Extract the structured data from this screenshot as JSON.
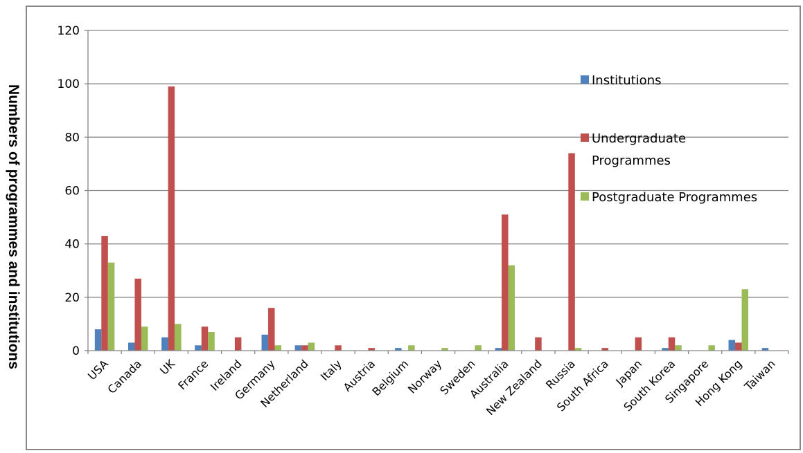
{
  "chart_data": {
    "type": "bar",
    "title": "",
    "xlabel": "",
    "ylabel": "Numbers of programmes and institutions",
    "ylim": [
      0,
      120
    ],
    "yticks": [
      "0",
      "20",
      "40",
      "60",
      "80",
      "100",
      "120"
    ],
    "grid": true,
    "legend_position": "right",
    "categories": [
      "USA",
      "Canada",
      "UK",
      "France",
      "Ireland",
      "Germany",
      "Netherland",
      "Italy",
      "Austria",
      "Belgium",
      "Norway",
      "Sweden",
      "Australia",
      "New Zealand",
      "Russia",
      "South Africa",
      "Japan",
      "South Korea",
      "Singapore",
      "Hong Kong",
      "Taiwan"
    ],
    "series": [
      {
        "name": "Institutions",
        "color": "#4f81bd",
        "values": [
          8,
          3,
          5,
          2,
          0,
          6,
          2,
          0,
          0,
          1,
          0,
          0,
          1,
          0,
          0,
          0,
          0,
          1,
          0,
          4,
          1
        ]
      },
      {
        "name": "Undergraduate Programmes",
        "legend_lines": [
          "Undergraduate",
          "Programmes"
        ],
        "color": "#c0504d",
        "values": [
          43,
          27,
          99,
          9,
          5,
          16,
          2,
          2,
          1,
          0,
          0,
          0,
          51,
          5,
          74,
          1,
          5,
          5,
          0,
          3,
          0
        ]
      },
      {
        "name": "Postgraduate Programmes",
        "color": "#9bbb59",
        "values": [
          33,
          9,
          10,
          7,
          0,
          2,
          3,
          0,
          0,
          2,
          1,
          2,
          32,
          0,
          1,
          0,
          0,
          2,
          2,
          23,
          0
        ]
      }
    ]
  }
}
